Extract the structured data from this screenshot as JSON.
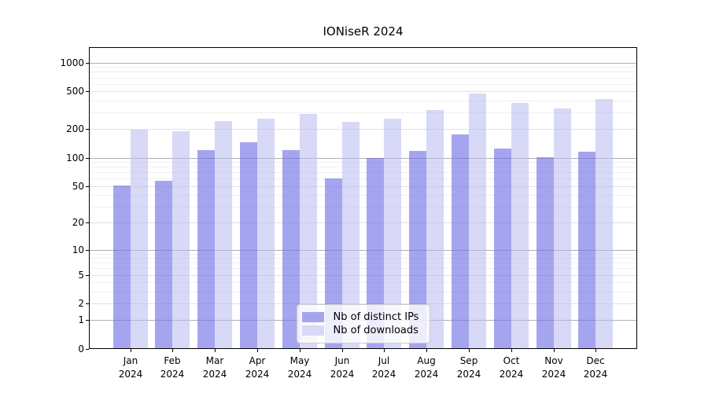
{
  "title": "IONiseR 2024",
  "legend": {
    "items": [
      {
        "label": "Nb of distinct IPs",
        "color": "#a5a5ef"
      },
      {
        "label": "Nb of downloads",
        "color": "#d8d8f7"
      }
    ]
  },
  "chart_data": {
    "type": "bar",
    "title": "IONiseR 2024",
    "categories": [
      "Jan 2024",
      "Feb 2024",
      "Mar 2024",
      "Apr 2024",
      "May 2024",
      "Jun 2024",
      "Jul 2024",
      "Aug 2024",
      "Sep 2024",
      "Oct 2024",
      "Nov 2024",
      "Dec 2024"
    ],
    "x_months": [
      "Jan",
      "Feb",
      "Mar",
      "Apr",
      "May",
      "Jun",
      "Jul",
      "Aug",
      "Sep",
      "Oct",
      "Nov",
      "Dec"
    ],
    "x_year": "2024",
    "series": [
      {
        "name": "Nb of distinct IPs",
        "values": [
          51,
          57,
          120,
          145,
          120,
          60,
          100,
          119,
          178,
          125,
          102,
          116
        ],
        "bar_color": "rgba(110,110,229,0.62)",
        "legend_color": "#a5a5ef"
      },
      {
        "name": "Nb of downloads",
        "values": [
          199,
          189,
          244,
          256,
          289,
          241,
          257,
          316,
          470,
          380,
          333,
          418
        ],
        "bar_color": "rgba(184,184,240,0.55)",
        "legend_color": "#d8d8f7"
      }
    ],
    "xlabel": "",
    "ylabel": "",
    "y_scale": "log1p",
    "y_ticks": [
      0,
      1,
      2,
      5,
      10,
      20,
      50,
      100,
      200,
      500,
      1000
    ],
    "y_major_gridlines": [
      1,
      10,
      100,
      1000
    ],
    "ylim": [
      0,
      1460
    ],
    "grid": true,
    "legend_position": "lower center",
    "colors": {
      "decade_gridline": "#b0b0b0",
      "labeled_gridline": "#e2e2e2",
      "minor_gridline": "#f0f0f0",
      "spine": "#000000"
    }
  }
}
